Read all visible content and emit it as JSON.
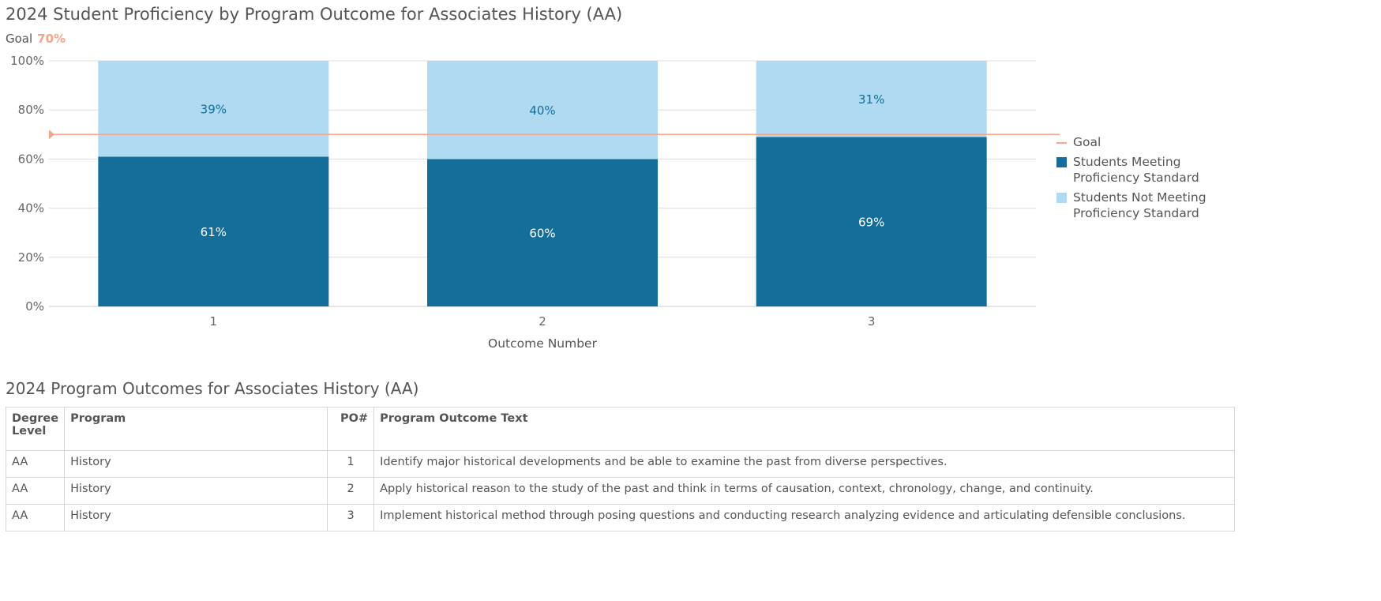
{
  "title": "2024 Student Proficiency by Program Outcome for Associates History (AA)",
  "goal": {
    "label": "Goal",
    "value": "70%"
  },
  "chart_data": {
    "type": "bar",
    "stacked": true,
    "title": "2024 Student Proficiency by Program Outcome for Associates History (AA)",
    "xlabel": "Outcome Number",
    "ylabel": "",
    "categories": [
      "1",
      "2",
      "3"
    ],
    "ylim": [
      0,
      100
    ],
    "yticks": [
      "0%",
      "20%",
      "40%",
      "60%",
      "80%",
      "100%"
    ],
    "grid": true,
    "legend": "right",
    "goal": 70,
    "series": [
      {
        "name": "Students Meeting Proficiency Standard",
        "values": [
          61,
          60,
          69
        ],
        "labels": [
          "61%",
          "60%",
          "69%"
        ],
        "color": "#156d99"
      },
      {
        "name": "Students Not Meeting Proficiency Standard",
        "values": [
          39,
          40,
          31
        ],
        "labels": [
          "39%",
          "40%",
          "31%"
        ],
        "color": "#afdaf2"
      }
    ],
    "legend_items": [
      "Goal",
      "Students Meeting Proficiency Standard",
      "Students Not Meeting Proficiency Standard"
    ],
    "goal_color": "#f4a58a"
  },
  "table": {
    "title": "2024 Program Outcomes for Associates History (AA)",
    "headers": [
      "Degree Level",
      "Program",
      "PO#",
      "Program Outcome Text"
    ],
    "rows": [
      [
        "AA",
        "History",
        "1",
        "Identify major historical developments and be able to examine the past from diverse perspectives."
      ],
      [
        "AA",
        "History",
        "2",
        "Apply historical reason to the study of the past and think in terms of causation, context, chronology, change, and continuity."
      ],
      [
        "AA",
        "History",
        "3",
        "Implement historical method through posing questions and conducting research analyzing evidence and articulating defensible conclusions."
      ]
    ]
  }
}
